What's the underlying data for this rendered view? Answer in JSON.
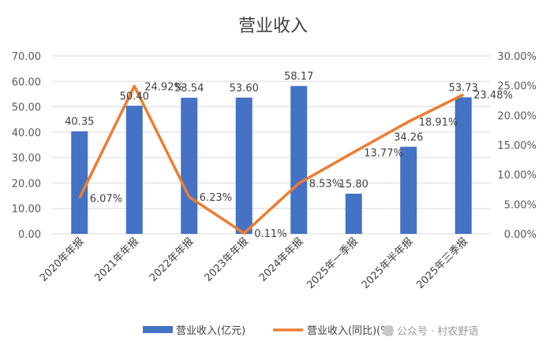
{
  "chart_data": {
    "type": "bar+line",
    "title": "营业收入",
    "categories": [
      "2020年年报",
      "2021年年报",
      "2022年年报",
      "2023年年报",
      "2024年年报",
      "2025年一季报",
      "2025年半年报",
      "2025年三季报"
    ],
    "series": [
      {
        "name": "营业收入(亿元)",
        "type": "bar",
        "axis": "left",
        "values": [
          40.35,
          50.4,
          53.54,
          53.6,
          58.17,
          15.8,
          34.26,
          53.73
        ],
        "labels": [
          "40.35",
          "50.40",
          "53.54",
          "53.60",
          "58.17",
          "15.80",
          "34.26",
          "53.73"
        ]
      },
      {
        "name": "营业收入(同比)(%)",
        "type": "line",
        "axis": "right",
        "values": [
          6.07,
          24.92,
          6.23,
          0.11,
          8.53,
          13.77,
          18.91,
          23.48
        ],
        "labels": [
          "6.07%",
          "24.92%",
          "6.23%",
          "0.11%",
          "8.53%",
          "13.77%",
          "18.91%",
          "23.48%"
        ]
      }
    ],
    "y_left": {
      "min": 0,
      "max": 70,
      "step": 10,
      "ticks": [
        "0.00",
        "10.00",
        "20.00",
        "30.00",
        "40.00",
        "50.00",
        "60.00",
        "70.00"
      ]
    },
    "y_right": {
      "min": 0,
      "max": 30,
      "step": 5,
      "ticks": [
        "0.00%",
        "5.00%",
        "10.00%",
        "15.00%",
        "20.00%",
        "25.00%",
        "30.00%"
      ]
    },
    "grid": true,
    "legend": "bottom",
    "colors": {
      "bar": "#4472C4",
      "line": "#ED7D31",
      "grid": "#D9D9D9"
    }
  },
  "watermark": "公众号 · 村农野语"
}
